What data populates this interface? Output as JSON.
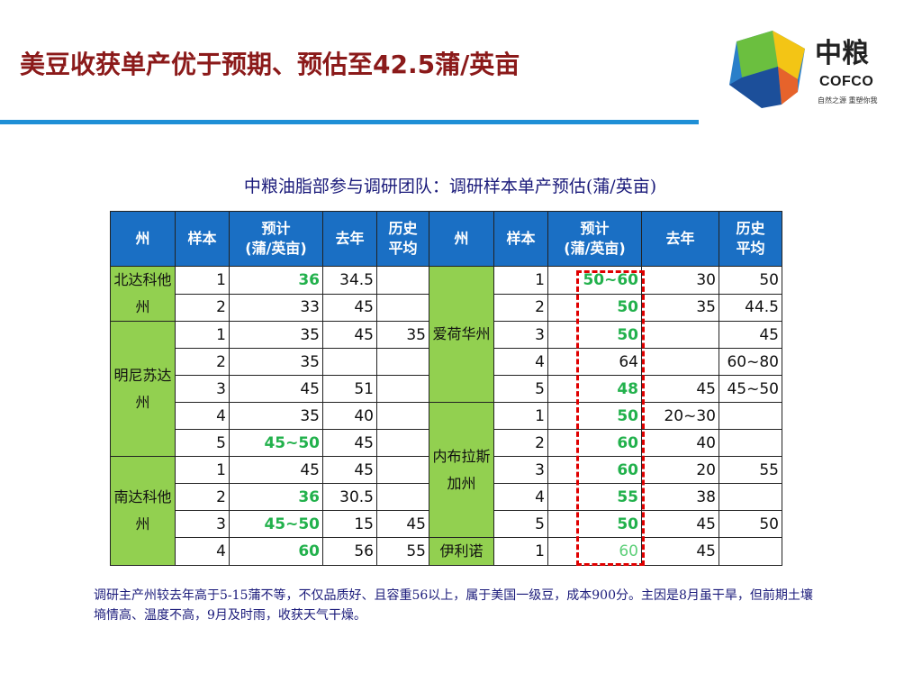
{
  "title": "美豆收获单产优于预期、预估至42.5蒲/英亩",
  "logo": {
    "cn": "中粮",
    "en": "COFCO",
    "slogan": "自然之源 重塑你我"
  },
  "subtitle": "中粮油脂部参与调研团队：调研样本单产预估(蒲/英亩)",
  "table": {
    "headers": [
      "州",
      "样本",
      "预计\n(蒲/英亩)",
      "去年",
      "历史\n平均",
      "州",
      "样本",
      "预计\n(蒲/英亩)",
      "去年",
      "历史\n平均"
    ],
    "left_states": [
      "北达科他州",
      "明尼苏达州",
      "南达科他州"
    ],
    "right_states": [
      "爱荷华州",
      "内布拉斯加州",
      "伊利诺"
    ],
    "rows": [
      [
        "1",
        "36",
        "34.5",
        "",
        "1",
        "50~60",
        "30",
        "50"
      ],
      [
        "2",
        "33",
        "45",
        "",
        "2",
        "50",
        "35",
        "44.5"
      ],
      [
        "1",
        "35",
        "45",
        "35",
        "3",
        "50",
        "",
        "45"
      ],
      [
        "2",
        "35",
        "",
        "",
        "4",
        "64",
        "",
        "60~80"
      ],
      [
        "3",
        "45",
        "51",
        "",
        "5",
        "48",
        "45",
        "45~50"
      ],
      [
        "4",
        "35",
        "40",
        "",
        "1",
        "50",
        "20~30",
        ""
      ],
      [
        "5",
        "45~50",
        "45",
        "",
        "2",
        "60",
        "40",
        ""
      ],
      [
        "1",
        "45",
        "45",
        "",
        "3",
        "60",
        "20",
        "55"
      ],
      [
        "2",
        "36",
        "30.5",
        "",
        "4",
        "55",
        "38",
        ""
      ],
      [
        "3",
        "45~50",
        "15",
        "45",
        "5",
        "50",
        "45",
        "50"
      ],
      [
        "4",
        "60",
        "56",
        "55",
        "1",
        "60",
        "45",
        ""
      ]
    ]
  },
  "note": "调研主产州较去年高于5-15蒲不等，不仅品质好、且容重56以上，属于美国一级豆，成本900分。主因是8月虽干旱，但前期土壤墒情高、温度不高，9月及时雨，收获天气干燥。",
  "colors": {
    "title": "#8b1a1a",
    "header_bg": "#1a6fc4",
    "state_bg": "#92d050",
    "highlight": "#22b14c",
    "dash": "#e00000"
  }
}
